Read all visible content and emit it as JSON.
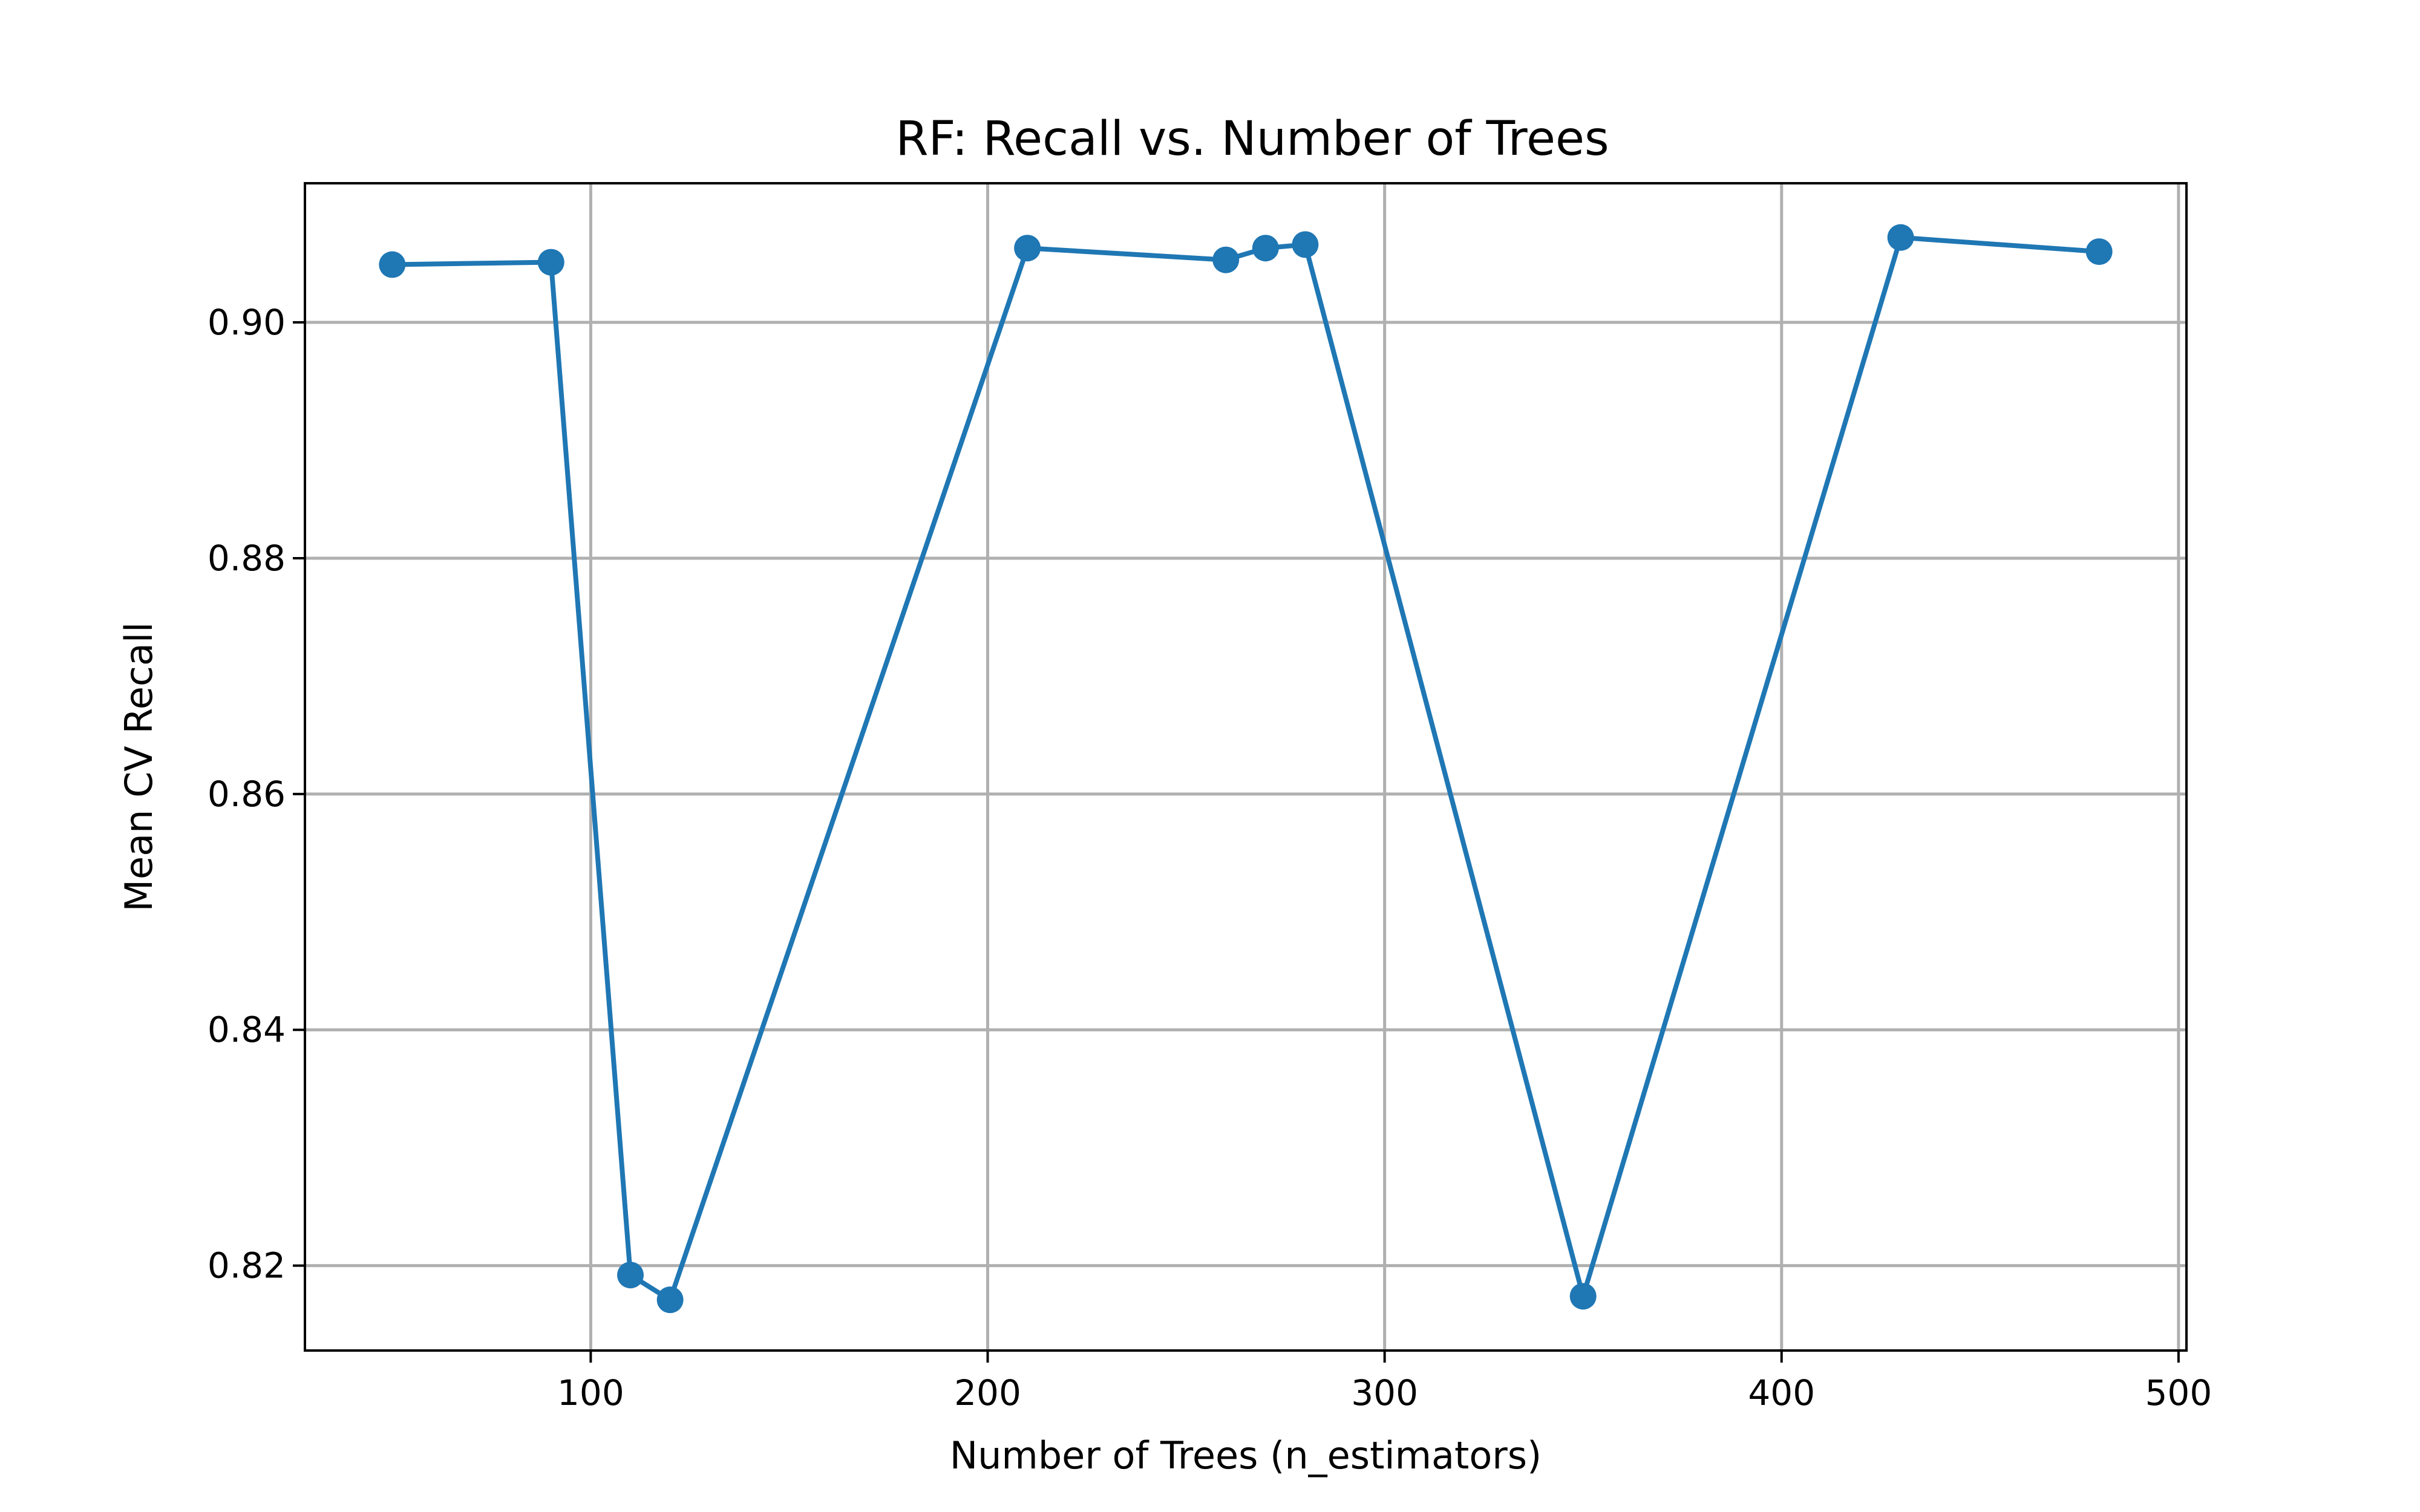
{
  "chart_data": {
    "type": "line",
    "title": "RF: Recall vs. Number of Trees",
    "xlabel": "Number of Trees (n_estimators)",
    "ylabel": "Mean CV Recall",
    "xlim": [
      28,
      502
    ],
    "ylim": [
      0.8128,
      0.9118
    ],
    "xticks": [
      100,
      200,
      300,
      400,
      500
    ],
    "xtick_labels": [
      "100",
      "200",
      "300",
      "400",
      "500"
    ],
    "yticks": [
      0.82,
      0.84,
      0.86,
      0.88,
      0.9
    ],
    "ytick_labels": [
      "0.82",
      "0.84",
      "0.86",
      "0.88",
      "0.90"
    ],
    "grid": true,
    "series": [
      {
        "color": "#1f77b4",
        "marker": "circle",
        "x": [
          50,
          90,
          110,
          120,
          210,
          260,
          270,
          280,
          350,
          430,
          480
        ],
        "y": [
          0.9049,
          0.9051,
          0.8192,
          0.8171,
          0.9063,
          0.9053,
          0.9063,
          0.9066,
          0.8174,
          0.9072,
          0.906
        ]
      }
    ]
  }
}
